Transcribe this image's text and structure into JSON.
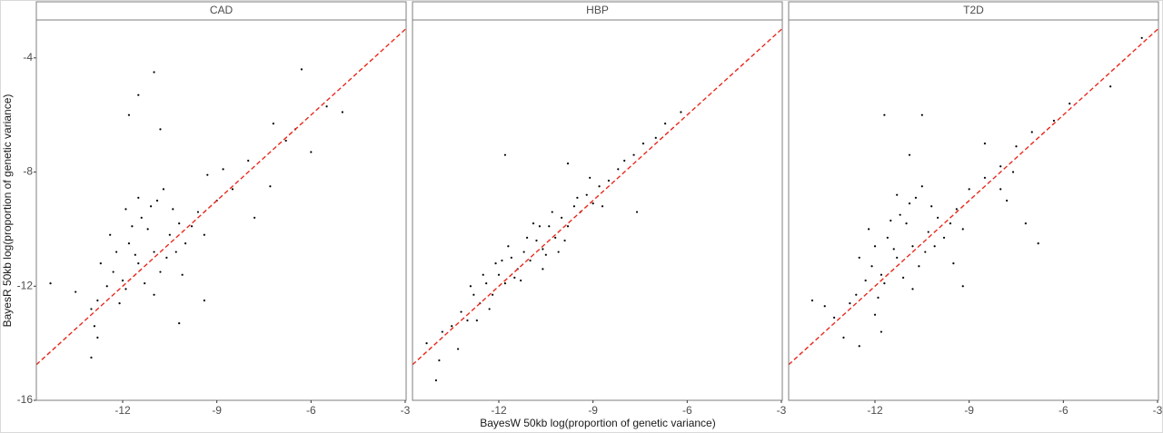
{
  "chart_data": {
    "type": "scatter",
    "xlabel": "BayesW 50kb log(proportion of genetic variance)",
    "ylabel": "BayesR 50kb log(proportion of genetic variance)",
    "xlim": [
      -14.75,
      -2.97
    ],
    "ylim": [
      -16,
      -2.67
    ],
    "xticks": [
      -12,
      -9,
      -6,
      -3
    ],
    "yticks": [
      -4,
      -8,
      -12,
      -16
    ],
    "point_color": "#000000",
    "reference_line": {
      "slope": 1,
      "intercept": 0,
      "color": "#e8291c"
    },
    "facets": [
      {
        "title": "CAD",
        "x": [
          -11.0,
          -11.5,
          -10.5,
          -12.0,
          -11.2,
          -10.8,
          -11.8,
          -10.2,
          -12.3,
          -11.4,
          -10.6,
          -11.9,
          -12.5,
          -10.0,
          -11.1,
          -11.6,
          -12.2,
          -10.4,
          -9.8,
          -11.3,
          -12.7,
          -11.7,
          -10.9,
          -12.1,
          -10.3,
          -9.6,
          -11.0,
          -12.8,
          -11.5,
          -10.7,
          -9.4,
          -12.4,
          -13.0,
          -11.9,
          -10.1,
          -9.0,
          -8.5,
          -8.0,
          -7.3,
          -7.8,
          -6.8,
          -6.0,
          -8.8,
          -9.3,
          -12.9,
          -11.0,
          -6.3,
          -11.5,
          -11.8,
          -10.8,
          -5.5,
          -5.0,
          -13.0,
          -14.3,
          -10.2,
          -12.8,
          -9.4,
          -6.5,
          -7.2,
          -13.5
        ],
        "y": [
          -10.8,
          -11.2,
          -10.2,
          -11.8,
          -10.0,
          -11.5,
          -10.5,
          -9.8,
          -11.5,
          -9.6,
          -11.0,
          -12.1,
          -12.0,
          -10.5,
          -9.2,
          -10.9,
          -10.8,
          -9.3,
          -9.9,
          -11.9,
          -11.2,
          -9.9,
          -9.0,
          -12.6,
          -10.8,
          -9.4,
          -12.3,
          -12.5,
          -8.9,
          -8.6,
          -10.2,
          -10.2,
          -12.8,
          -9.3,
          -11.6,
          -9.0,
          -8.6,
          -7.6,
          -8.5,
          -9.6,
          -6.9,
          -7.3,
          -7.9,
          -8.1,
          -13.4,
          -4.5,
          -4.4,
          -5.3,
          -6.0,
          -6.5,
          -5.7,
          -5.9,
          -14.5,
          -11.9,
          -13.3,
          -13.8,
          -12.5,
          -6.5,
          -6.3,
          -12.2
        ]
      },
      {
        "title": "HBP",
        "x": [
          -13.5,
          -13.2,
          -13.0,
          -12.8,
          -12.6,
          -12.4,
          -12.2,
          -12.0,
          -11.8,
          -11.6,
          -11.4,
          -11.2,
          -11.0,
          -10.8,
          -10.6,
          -10.4,
          -10.2,
          -10.0,
          -9.8,
          -9.6,
          -9.4,
          -9.2,
          -9.0,
          -8.8,
          -8.5,
          -8.2,
          -8.0,
          -7.7,
          -7.4,
          -7.0,
          -6.7,
          -6.2,
          -11.5,
          -11.1,
          -10.5,
          -10.9,
          -12.3,
          -11.9,
          -10.3,
          -9.9,
          -12.5,
          -11.3,
          -10.7,
          -9.5,
          -12.1,
          -13.8,
          -13.9,
          -14.0,
          -13.3,
          -11.8,
          -9.8,
          -7.6,
          -14.3,
          -12.7,
          -10.1,
          -11.7,
          -8.7,
          -9.1,
          -10.6,
          -12.9
        ],
        "y": [
          -13.4,
          -12.9,
          -13.2,
          -12.3,
          -12.6,
          -11.9,
          -12.3,
          -11.6,
          -11.9,
          -11.0,
          -11.4,
          -10.8,
          -11.1,
          -10.4,
          -10.7,
          -9.9,
          -10.3,
          -9.6,
          -9.9,
          -9.2,
          -9.4,
          -8.8,
          -9.1,
          -8.5,
          -8.3,
          -7.9,
          -7.6,
          -7.4,
          -7.0,
          -6.8,
          -6.3,
          -5.9,
          -11.7,
          -10.3,
          -10.9,
          -9.8,
          -12.8,
          -11.1,
          -9.4,
          -10.4,
          -11.6,
          -11.8,
          -9.9,
          -8.9,
          -11.2,
          -13.6,
          -14.6,
          -15.3,
          -14.2,
          -7.4,
          -7.7,
          -9.4,
          -14.0,
          -13.2,
          -10.8,
          -10.6,
          -9.2,
          -8.2,
          -11.4,
          -12.0
        ]
      },
      {
        "title": "T2D",
        "x": [
          -10.8,
          -11.3,
          -10.3,
          -11.8,
          -11.0,
          -10.6,
          -11.6,
          -10.0,
          -12.1,
          -11.2,
          -10.4,
          -11.7,
          -12.3,
          -9.8,
          -10.9,
          -11.4,
          -12.0,
          -10.2,
          -9.6,
          -11.1,
          -12.5,
          -11.5,
          -10.7,
          -11.9,
          -10.1,
          -9.4,
          -10.8,
          -12.6,
          -11.3,
          -10.5,
          -9.2,
          -12.2,
          -12.8,
          -9.0,
          -8.5,
          -8.0,
          -7.5,
          -7.0,
          -6.3,
          -5.8,
          -4.5,
          -3.5,
          -11.7,
          -10.5,
          -8.5,
          -8.0,
          -7.2,
          -6.8,
          -13.3,
          -13.6,
          -13.0,
          -12.5,
          -11.8,
          -14.0,
          -12.0,
          -9.2,
          -7.8,
          -7.6,
          -9.5,
          -10.9
        ],
        "y": [
          -10.6,
          -11.0,
          -10.1,
          -11.6,
          -9.8,
          -11.3,
          -10.3,
          -9.6,
          -11.3,
          -9.5,
          -10.8,
          -11.9,
          -11.8,
          -10.3,
          -9.1,
          -10.7,
          -10.6,
          -9.2,
          -9.8,
          -11.7,
          -11.0,
          -9.7,
          -8.9,
          -12.4,
          -10.6,
          -9.3,
          -12.1,
          -12.3,
          -8.8,
          -8.5,
          -10.0,
          -10.0,
          -12.6,
          -8.6,
          -8.2,
          -7.8,
          -7.1,
          -6.6,
          -6.2,
          -5.6,
          -5.0,
          -3.3,
          -6.0,
          -6.0,
          -7.0,
          -8.6,
          -9.8,
          -10.5,
          -13.1,
          -12.7,
          -13.8,
          -14.1,
          -13.6,
          -12.5,
          -13.0,
          -12.0,
          -9.0,
          -8.0,
          -11.2,
          -7.4
        ]
      }
    ]
  }
}
